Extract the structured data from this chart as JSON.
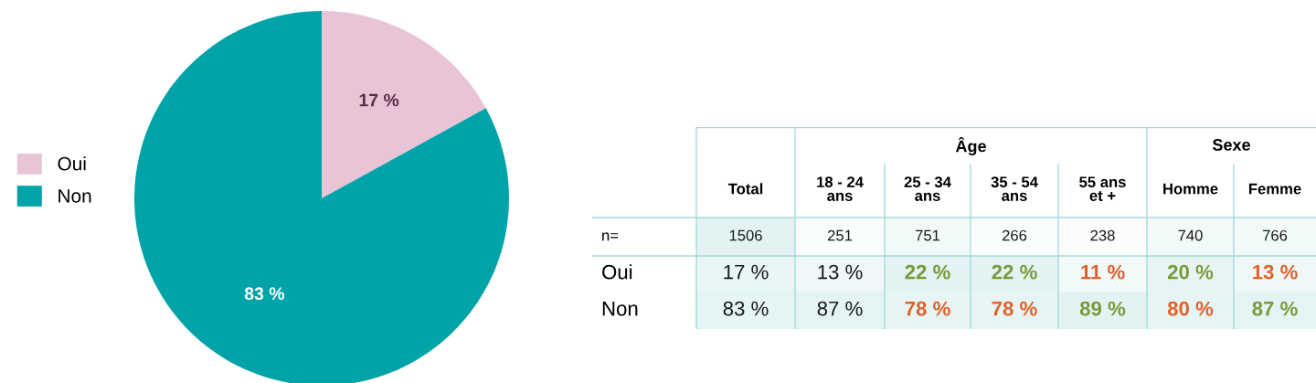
{
  "chart_data": [
    {
      "type": "pie",
      "categories": [
        "Oui",
        "Non"
      ],
      "values": [
        17,
        83
      ],
      "colors": [
        "#e8c4d6",
        "#00a3a8"
      ],
      "value_labels": [
        "17 %",
        "83 %"
      ],
      "legend": "left"
    },
    {
      "type": "heatmap",
      "categories": [
        "Total",
        "18 - 24\nans",
        "25 - 34\nans",
        "35 - 54\nans",
        "55 ans\net +",
        "Homme",
        "Femme"
      ],
      "y_categories": [
        "n=",
        "Oui",
        "Non"
      ],
      "cells": [
        [
          1506,
          251,
          751,
          266,
          238,
          740,
          766
        ],
        [
          17,
          13,
          22,
          22,
          11,
          20,
          13
        ],
        [
          83,
          87,
          78,
          78,
          89,
          80,
          87
        ]
      ],
      "cell_labels": [
        [
          "1506",
          "251",
          "751",
          "266",
          "238",
          "740",
          "766"
        ],
        [
          "17 %",
          "13 %",
          "22 %",
          "22 %",
          "11 %",
          "20 %",
          "13 %"
        ],
        [
          "83 %",
          "87 %",
          "78 %",
          "78 %",
          "89 %",
          "80 %",
          "87 %"
        ]
      ],
      "colors": [
        [
          "#1a1a1a",
          "#1a1a1a",
          "#1a1a1a",
          "#1a1a1a",
          "#1a1a1a",
          "#1a1a1a",
          "#1a1a1a"
        ],
        [
          "#1a1a1a",
          "#1a1a1a",
          "#7a9a3a",
          "#7a9a3a",
          "#e0622a",
          "#7a9a3a",
          "#e0622a"
        ],
        [
          "#1a1a1a",
          "#1a1a1a",
          "#e0622a",
          "#e0622a",
          "#7a9a3a",
          "#e0622a",
          "#7a9a3a"
        ]
      ],
      "annotations": [
        "Âge",
        "Sexe"
      ]
    }
  ]
}
